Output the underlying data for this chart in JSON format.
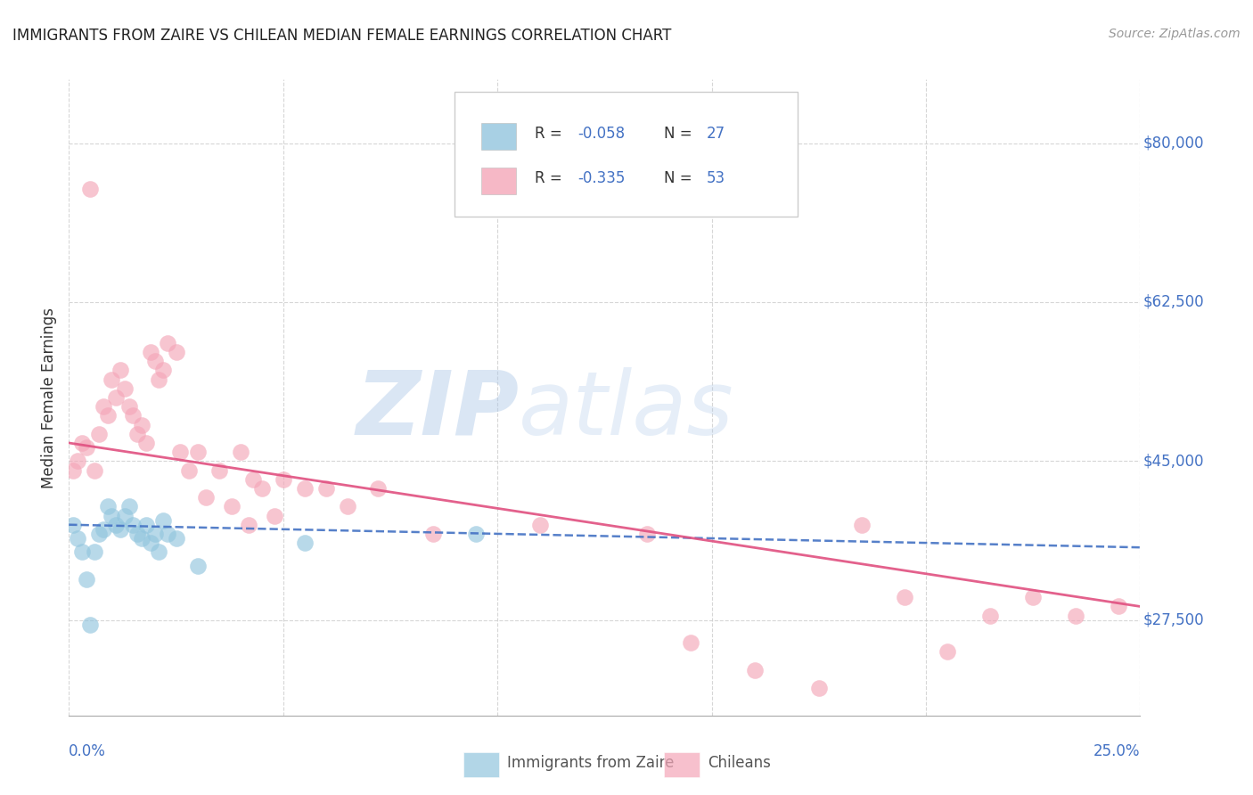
{
  "title": "IMMIGRANTS FROM ZAIRE VS CHILEAN MEDIAN FEMALE EARNINGS CORRELATION CHART",
  "source": "Source: ZipAtlas.com",
  "ylabel": "Median Female Earnings",
  "y_ticks": [
    27500,
    45000,
    62500,
    80000
  ],
  "y_tick_labels": [
    "$27,500",
    "$45,000",
    "$62,500",
    "$80,000"
  ],
  "xlim": [
    0.0,
    0.25
  ],
  "ylim": [
    17000,
    87000
  ],
  "legend_r1": "-0.058",
  "legend_n1": "27",
  "legend_r2": "-0.335",
  "legend_n2": "53",
  "legend_label1": "Immigrants from Zaire",
  "legend_label2": "Chileans",
  "color_blue": "#92c5de",
  "color_pink": "#f4a6b8",
  "color_blue_line": "#4472c4",
  "color_pink_line": "#e05080",
  "color_axis_labels": "#4472c4",
  "color_text_dark": "#333333",
  "background_color": "#ffffff",
  "watermark_zip": "ZIP",
  "watermark_atlas": "atlas",
  "zaire_x": [
    0.001,
    0.002,
    0.003,
    0.004,
    0.005,
    0.006,
    0.007,
    0.008,
    0.009,
    0.01,
    0.011,
    0.012,
    0.013,
    0.014,
    0.015,
    0.016,
    0.017,
    0.018,
    0.019,
    0.02,
    0.021,
    0.022,
    0.023,
    0.025,
    0.03,
    0.055,
    0.095
  ],
  "zaire_y": [
    38000,
    36500,
    35000,
    32000,
    27000,
    35000,
    37000,
    37500,
    40000,
    39000,
    38000,
    37500,
    39000,
    40000,
    38000,
    37000,
    36500,
    38000,
    36000,
    37000,
    35000,
    38500,
    37000,
    36500,
    33500,
    36000,
    37000
  ],
  "chilean_x": [
    0.001,
    0.002,
    0.003,
    0.004,
    0.005,
    0.006,
    0.007,
    0.008,
    0.009,
    0.01,
    0.011,
    0.012,
    0.013,
    0.014,
    0.015,
    0.016,
    0.017,
    0.018,
    0.019,
    0.02,
    0.021,
    0.022,
    0.023,
    0.025,
    0.026,
    0.028,
    0.03,
    0.032,
    0.035,
    0.038,
    0.04,
    0.042,
    0.043,
    0.045,
    0.048,
    0.05,
    0.055,
    0.06,
    0.065,
    0.072,
    0.085,
    0.11,
    0.135,
    0.145,
    0.16,
    0.175,
    0.185,
    0.195,
    0.205,
    0.215,
    0.225,
    0.235,
    0.245
  ],
  "chilean_y": [
    44000,
    45000,
    47000,
    46500,
    75000,
    44000,
    48000,
    51000,
    50000,
    54000,
    52000,
    55000,
    53000,
    51000,
    50000,
    48000,
    49000,
    47000,
    57000,
    56000,
    54000,
    55000,
    58000,
    57000,
    46000,
    44000,
    46000,
    41000,
    44000,
    40000,
    46000,
    38000,
    43000,
    42000,
    39000,
    43000,
    42000,
    42000,
    40000,
    42000,
    37000,
    38000,
    37000,
    25000,
    22000,
    20000,
    38000,
    30000,
    24000,
    28000,
    30000,
    28000,
    29000
  ],
  "zaire_trend_x0": 0.0,
  "zaire_trend_x1": 0.25,
  "zaire_trend_y0": 38000,
  "zaire_trend_y1": 35500,
  "chilean_trend_x0": 0.0,
  "chilean_trend_x1": 0.25,
  "chilean_trend_y0": 47000,
  "chilean_trend_y1": 29000
}
